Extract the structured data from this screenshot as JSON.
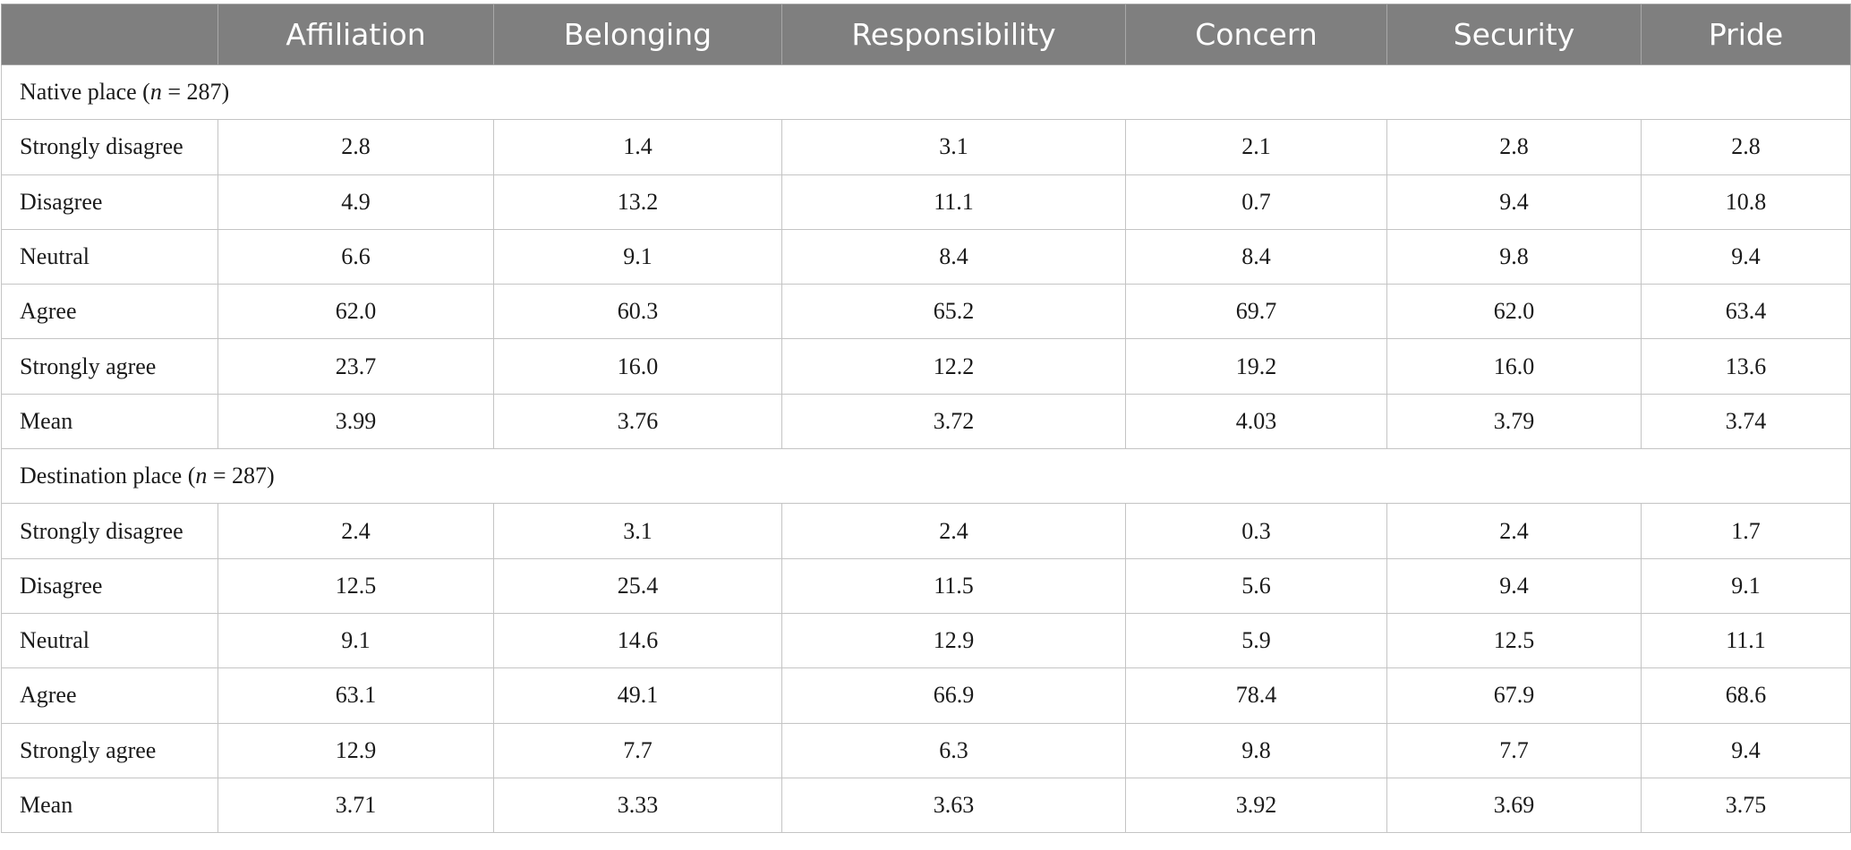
{
  "columns": [
    "",
    "Affiliation",
    "Belonging",
    "Responsibility",
    "Concern",
    "Security",
    "Pride"
  ],
  "sections": [
    {
      "title_prefix": "Native place (",
      "title_n": "n",
      "title_suffix": " = 287)",
      "rows": [
        {
          "label": "Strongly disagree",
          "values": [
            "2.8",
            "1.4",
            "3.1",
            "2.1",
            "2.8",
            "2.8"
          ]
        },
        {
          "label": "Disagree",
          "values": [
            "4.9",
            "13.2",
            "11.1",
            "0.7",
            "9.4",
            "10.8"
          ]
        },
        {
          "label": "Neutral",
          "values": [
            "6.6",
            "9.1",
            "8.4",
            "8.4",
            "9.8",
            "9.4"
          ]
        },
        {
          "label": "Agree",
          "values": [
            "62.0",
            "60.3",
            "65.2",
            "69.7",
            "62.0",
            "63.4"
          ]
        },
        {
          "label": "Strongly agree",
          "values": [
            "23.7",
            "16.0",
            "12.2",
            "19.2",
            "16.0",
            "13.6"
          ]
        },
        {
          "label": "Mean",
          "values": [
            "3.99",
            "3.76",
            "3.72",
            "4.03",
            "3.79",
            "3.74"
          ]
        }
      ]
    },
    {
      "title_prefix": "Destination place (",
      "title_n": "n",
      "title_suffix": " = 287)",
      "rows": [
        {
          "label": "Strongly disagree",
          "values": [
            "2.4",
            "3.1",
            "2.4",
            "0.3",
            "2.4",
            "1.7"
          ]
        },
        {
          "label": "Disagree",
          "values": [
            "12.5",
            "25.4",
            "11.5",
            "5.6",
            "9.4",
            "9.1"
          ]
        },
        {
          "label": "Neutral",
          "values": [
            "9.1",
            "14.6",
            "12.9",
            "5.9",
            "12.5",
            "11.1"
          ]
        },
        {
          "label": "Agree",
          "values": [
            "63.1",
            "49.1",
            "66.9",
            "78.4",
            "67.9",
            "68.6"
          ]
        },
        {
          "label": "Strongly agree",
          "values": [
            "12.9",
            "7.7",
            "6.3",
            "9.8",
            "7.7",
            "9.4"
          ]
        },
        {
          "label": "Mean",
          "values": [
            "3.71",
            "3.33",
            "3.63",
            "3.92",
            "3.69",
            "3.75"
          ]
        }
      ]
    }
  ]
}
